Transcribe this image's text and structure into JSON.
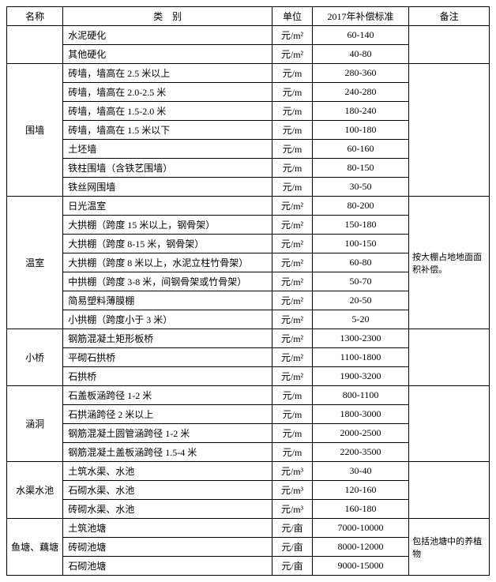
{
  "columns": [
    "名称",
    "类　别",
    "单位",
    "2017年补偿标准",
    "备注"
  ],
  "groups": [
    {
      "name": "",
      "note": "",
      "rows": [
        {
          "cat": "水泥硬化",
          "unit": "元/m²",
          "std": "60-140"
        },
        {
          "cat": "其他硬化",
          "unit": "元/m²",
          "std": "40-80"
        }
      ]
    },
    {
      "name": "围墙",
      "note": "",
      "rows": [
        {
          "cat": "砖墙，墙高在 2.5 米以上",
          "unit": "元/m",
          "std": "280-360"
        },
        {
          "cat": "砖墙，墙高在 2.0-2.5 米",
          "unit": "元/m",
          "std": "240-280"
        },
        {
          "cat": "砖墙，墙高在 1.5-2.0 米",
          "unit": "元/m",
          "std": "180-240"
        },
        {
          "cat": "砖墙，墙高在 1.5 米以下",
          "unit": "元/m",
          "std": "100-180"
        },
        {
          "cat": "土坯墙",
          "unit": "元/m",
          "std": "60-160"
        },
        {
          "cat": "铁柱围墙（含铁艺围墙）",
          "unit": "元/m",
          "std": "80-150"
        },
        {
          "cat": "铁丝网围墙",
          "unit": "元/m",
          "std": "30-50"
        }
      ]
    },
    {
      "name": "温室",
      "note": "按大棚占地地面面积补偿。",
      "rows": [
        {
          "cat": "日光温室",
          "unit": "元/m²",
          "std": "80-200"
        },
        {
          "cat": "大拱棚（跨度 15 米以上，钢骨架）",
          "unit": "元/m²",
          "std": "150-180"
        },
        {
          "cat": "大拱棚（跨度 8-15 米，钢骨架）",
          "unit": "元/m²",
          "std": "100-150"
        },
        {
          "cat": "大拱棚（跨度 8 米以上，水泥立柱竹骨架）",
          "unit": "元/m²",
          "std": "60-80"
        },
        {
          "cat": "中拱棚（跨度 3-8 米，间钢骨架或竹骨架）",
          "unit": "元/m²",
          "std": "50-70"
        },
        {
          "cat": "简易塑料薄膜棚",
          "unit": "元/m²",
          "std": "20-50"
        },
        {
          "cat": "小拱棚（跨度小于 3 米）",
          "unit": "元/m²",
          "std": "5-20"
        }
      ]
    },
    {
      "name": "小桥",
      "note": "",
      "rows": [
        {
          "cat": "钢筋混凝土矩形板桥",
          "unit": "元/m²",
          "std": "1300-2300"
        },
        {
          "cat": "平砌石拱桥",
          "unit": "元/m²",
          "std": "1100-1800"
        },
        {
          "cat": "石拱桥",
          "unit": "元/m²",
          "std": "1900-3200"
        }
      ]
    },
    {
      "name": "涵洞",
      "note": "",
      "rows": [
        {
          "cat": "石盖板涵跨径 1-2 米",
          "unit": "元/m",
          "std": "800-1100"
        },
        {
          "cat": "石拱涵跨径 2 米以上",
          "unit": "元/m",
          "std": "1800-3000"
        },
        {
          "cat": "钢筋混凝土圆管涵跨径 1-2 米",
          "unit": "元/m",
          "std": "2000-2500"
        },
        {
          "cat": "钢筋混凝土盖板涵跨径 1.5-4 米",
          "unit": "元/m",
          "std": "2200-3500"
        }
      ]
    },
    {
      "name": "水渠水池",
      "note": "",
      "rows": [
        {
          "cat": "土筑水渠、水池",
          "unit": "元/m³",
          "std": "30-40"
        },
        {
          "cat": "石砌水渠、水池",
          "unit": "元/m³",
          "std": "120-160"
        },
        {
          "cat": "砖砌水渠、水池",
          "unit": "元/m³",
          "std": "160-180"
        }
      ]
    },
    {
      "name": "鱼塘、藕塘",
      "note": "包括池塘中的养植物",
      "rows": [
        {
          "cat": "土筑池塘",
          "unit": "元/亩",
          "std": "7000-10000"
        },
        {
          "cat": "砖砌池塘",
          "unit": "元/亩",
          "std": "8000-12000"
        },
        {
          "cat": "石砌池塘",
          "unit": "元/亩",
          "std": "9000-15000"
        }
      ]
    }
  ]
}
